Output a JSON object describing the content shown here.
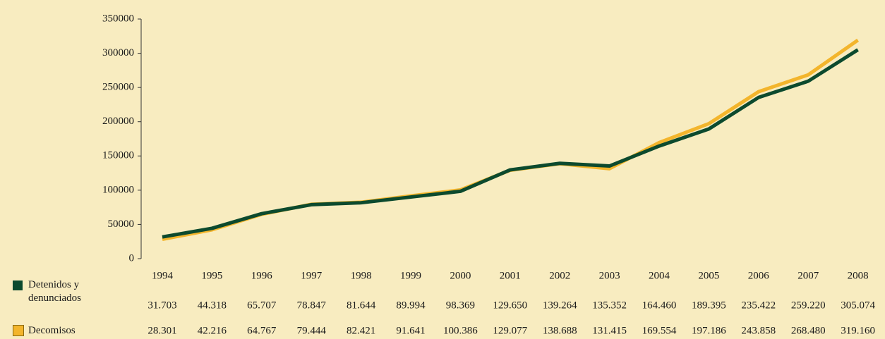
{
  "chart_data": {
    "type": "line",
    "categories": [
      "1994",
      "1995",
      "1996",
      "1997",
      "1998",
      "1999",
      "2000",
      "2001",
      "2002",
      "2003",
      "2004",
      "2005",
      "2006",
      "2007",
      "2008"
    ],
    "series": [
      {
        "name": "Detenidos y denunciados",
        "color": "#0c4a2e",
        "values": [
          31703,
          44318,
          65707,
          78847,
          81644,
          89994,
          98369,
          129650,
          139264,
          135352,
          164460,
          189395,
          235422,
          259220,
          305074
        ],
        "value_labels": [
          "31.703",
          "44.318",
          "65.707",
          "78.847",
          "81.644",
          "89.994",
          "98.369",
          "129.650",
          "139.264",
          "135.352",
          "164.460",
          "189.395",
          "235.422",
          "259.220",
          "305.074"
        ]
      },
      {
        "name": "Decomisos",
        "color": "#f3b52c",
        "values": [
          28301,
          42216,
          64767,
          79444,
          82421,
          91641,
          100386,
          129077,
          138688,
          131415,
          169554,
          197186,
          243858,
          268480,
          319160
        ],
        "value_labels": [
          "28.301",
          "42.216",
          "64.767",
          "79.444",
          "82.421",
          "91.641",
          "100.386",
          "129.077",
          "138.688",
          "131.415",
          "169.554",
          "197.186",
          "243.858",
          "268.480",
          "319.160"
        ]
      }
    ],
    "ylim": [
      0,
      350000
    ],
    "yticks": [
      0,
      50000,
      100000,
      150000,
      200000,
      250000,
      300000,
      350000
    ]
  }
}
